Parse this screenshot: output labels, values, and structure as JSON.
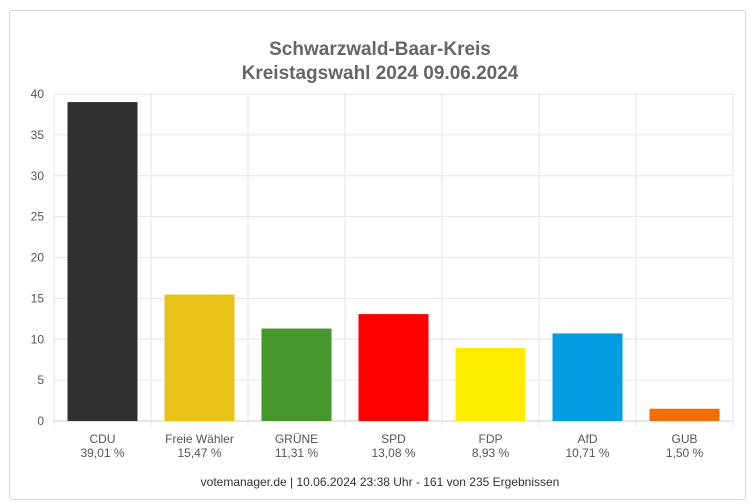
{
  "chart_data": {
    "type": "bar",
    "title": "Schwarzwald-Baar-Kreis",
    "subtitle": "Kreistagswahl 2024 09.06.2024",
    "categories": [
      "CDU",
      "Freie Wähler",
      "GRÜNE",
      "SPD",
      "FDP",
      "AfD",
      "GUB"
    ],
    "value_labels": [
      "39,01 %",
      "15,47 %",
      "11,31 %",
      "13,08 %",
      "8,93 %",
      "10,71 %",
      "1,50 %"
    ],
    "values": [
      39.01,
      15.47,
      11.31,
      13.08,
      8.93,
      10.71,
      1.5
    ],
    "colors": [
      "#32302e",
      "#e8c31a",
      "#46962b",
      "#ff0000",
      "#ffed00",
      "#009ee0",
      "#f06e0a"
    ],
    "ylim": [
      0,
      40
    ],
    "yticks": [
      "0",
      "5",
      "10",
      "15",
      "20",
      "25",
      "30",
      "35",
      "40"
    ],
    "grid": true,
    "legend": "none"
  },
  "footer": "votemanager.de | 10.06.2024 23:38 Uhr - 161 von 235 Ergebnissen"
}
